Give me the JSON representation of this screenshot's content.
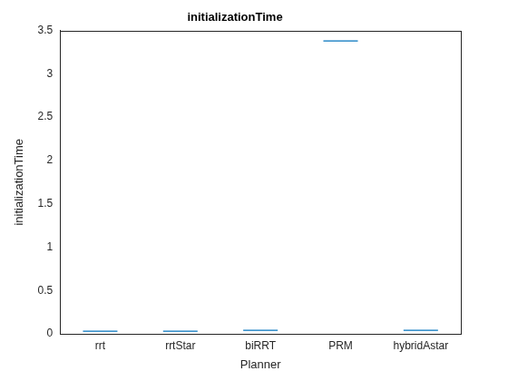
{
  "chart_data": {
    "type": "box",
    "title": "initializationTime",
    "x_label": "Planner",
    "y_label": "initializationTime",
    "categories": [
      "rrt",
      "rrtStar",
      "biRRT",
      "PRM",
      "hybridAstar"
    ],
    "values": [
      0.03,
      0.03,
      0.04,
      3.38,
      0.04
    ],
    "color": "#0072BD",
    "ylim": [
      0,
      3.5
    ],
    "yticks": [
      0,
      0.5,
      1,
      1.5,
      2,
      2.5,
      3,
      3.5
    ],
    "grid": false
  }
}
